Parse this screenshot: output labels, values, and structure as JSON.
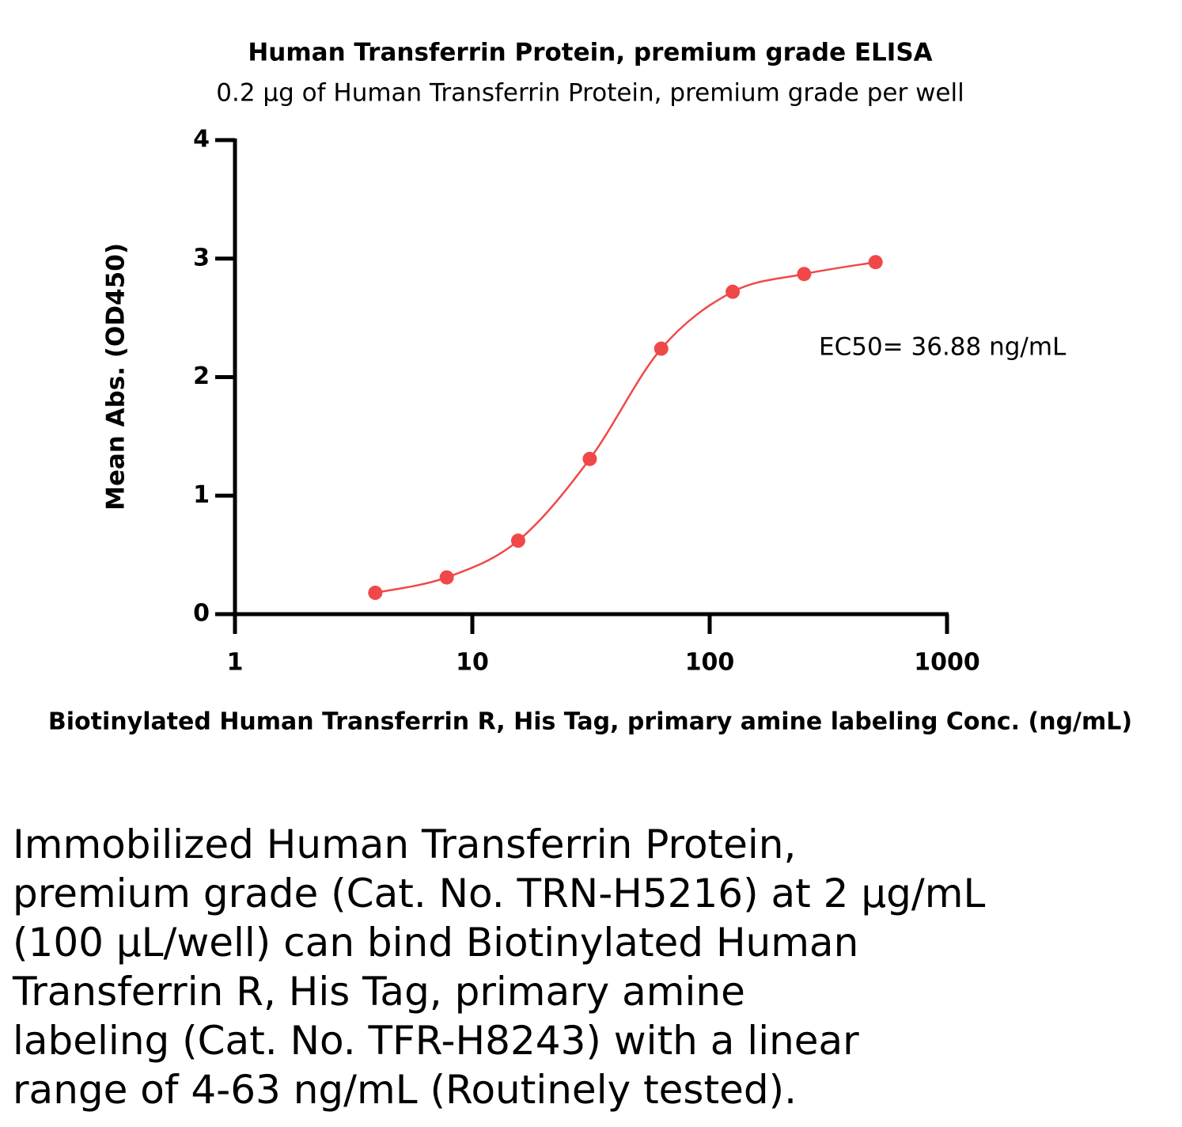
{
  "chart_data": {
    "type": "line",
    "smooth": true,
    "markers": true,
    "title": "Human Transferrin Protein, premium grade ELISA",
    "subtitle": "0.2 µg of Human Transferrin Protein, premium grade per well",
    "x_label": "Biotinylated Human Transferrin R, His Tag, primary amine labeling Conc. (ng/mL)",
    "y_label": "Mean Abs. (OD450)",
    "annotation": "EC50= 36.88 ng/mL",
    "x": [
      3.9,
      7.8,
      15.6,
      31.25,
      62.5,
      125,
      250,
      500
    ],
    "series": [
      {
        "name": "Mean Abs.",
        "color": "#f04848",
        "values": [
          0.18,
          0.31,
          0.62,
          1.31,
          2.24,
          2.72,
          2.87,
          2.97
        ]
      }
    ],
    "xscale": "log",
    "xlim": [
      1,
      1000
    ],
    "xticks": [
      1,
      10,
      100,
      1000
    ],
    "ylim": [
      0,
      4
    ],
    "yticks": [
      0,
      1,
      2,
      3,
      4
    ]
  },
  "caption_lines": [
    "Immobilized Human Transferrin Protein,",
    "premium grade (Cat. No. TRN-H5216) at 2 µg/mL",
    "(100 µL/well) can bind Biotinylated Human",
    "Transferrin R, His Tag, primary amine",
    "labeling (Cat. No. TFR-H8243) with a linear",
    "range of 4-63 ng/mL (Routinely tested)."
  ]
}
